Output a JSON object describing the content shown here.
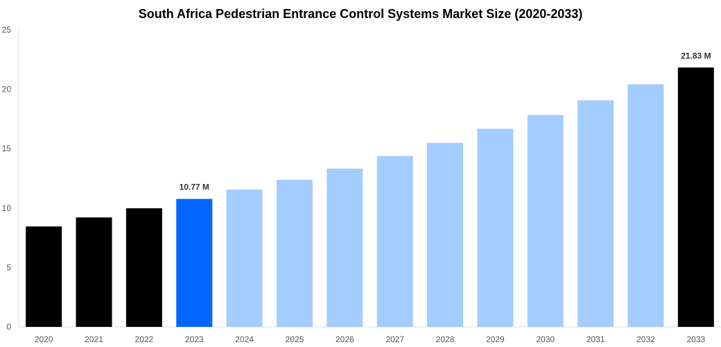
{
  "chart_data": {
    "type": "bar",
    "title": "South Africa Pedestrian Entrance Control Systems Market Size (2020-2033)",
    "xlabel": "",
    "ylabel": "",
    "categories": [
      "2020",
      "2021",
      "2022",
      "2023",
      "2024",
      "2025",
      "2026",
      "2027",
      "2028",
      "2029",
      "2030",
      "2031",
      "2032",
      "2033"
    ],
    "values": [
      8.45,
      9.21,
      9.98,
      10.77,
      11.56,
      12.38,
      13.32,
      14.38,
      15.49,
      16.67,
      17.84,
      19.07,
      20.42,
      21.83
    ],
    "colors": [
      "#000000",
      "#000000",
      "#000000",
      "#0066ff",
      "#a3cdff",
      "#a3cdff",
      "#a3cdff",
      "#a3cdff",
      "#a3cdff",
      "#a3cdff",
      "#a3cdff",
      "#a3cdff",
      "#a3cdff",
      "#000000"
    ],
    "data_labels": {
      "3": "10.77 M",
      "13": "21.83 M"
    },
    "ylim": [
      0,
      25
    ],
    "yticks": [
      0,
      5,
      10,
      15,
      20,
      25
    ],
    "grid": false,
    "legend": "none"
  }
}
